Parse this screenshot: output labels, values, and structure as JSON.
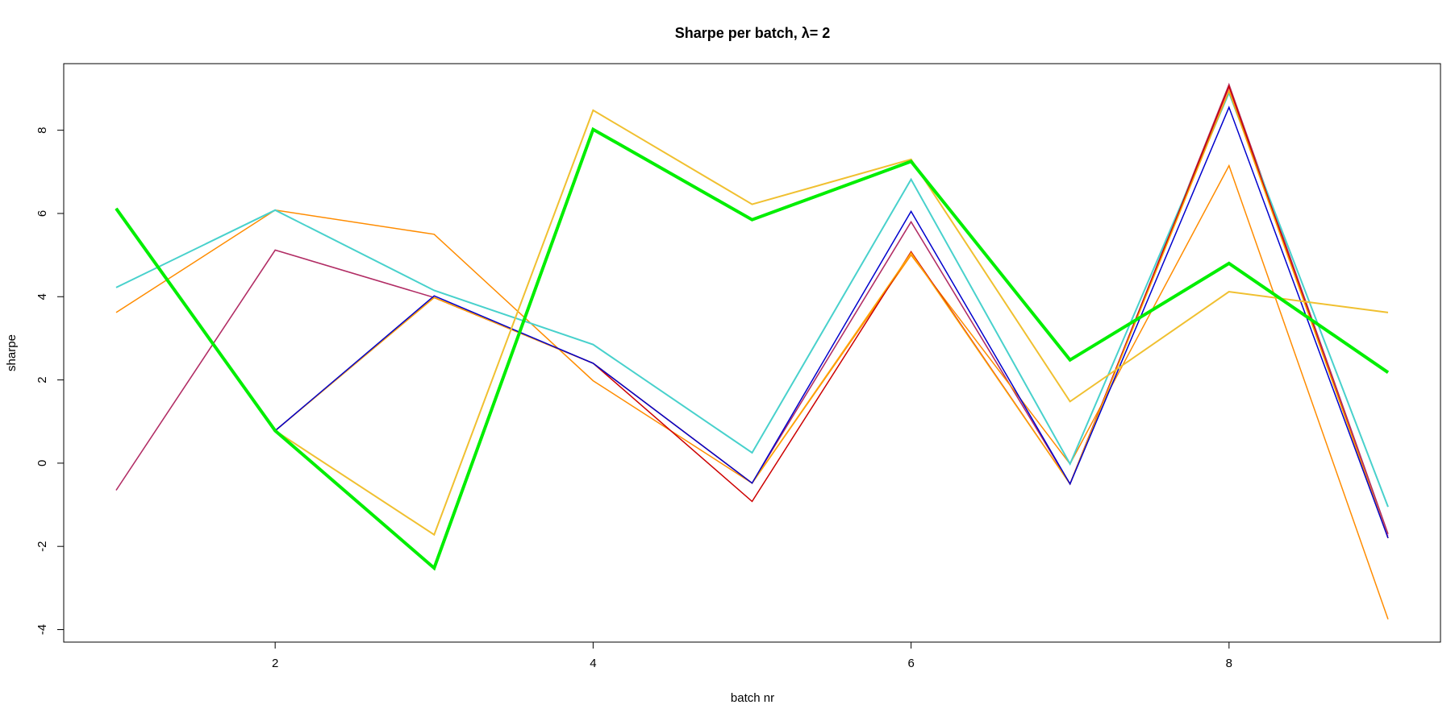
{
  "chart_data": {
    "type": "line",
    "title": "Sharpe per batch, λ= 2",
    "xlabel": "batch nr",
    "ylabel": "sharpe",
    "xlim": [
      0.67,
      9.33
    ],
    "ylim": [
      -4.3,
      9.6
    ],
    "x": [
      1,
      2,
      3,
      4,
      5,
      6,
      7,
      8,
      9
    ],
    "xticks": [
      2,
      4,
      6,
      8
    ],
    "yticks": [
      -4,
      -2,
      0,
      2,
      4,
      6,
      8
    ],
    "grid": false,
    "legend": "none",
    "series": [
      {
        "color": "#ee82ee",
        "width": 1.5,
        "values": [
          -0.65,
          5.12,
          3.98,
          2.4,
          -0.48,
          5.8,
          -0.5,
          9.0,
          -1.75
        ]
      },
      {
        "color": "#b03060",
        "width": 1.5,
        "values": [
          -0.65,
          5.12,
          3.98,
          2.4,
          -0.48,
          5.8,
          -0.5,
          9.1,
          -1.7
        ]
      },
      {
        "color": "#ff8c00",
        "width": 1.5,
        "values": [
          3.62,
          6.08,
          5.5,
          1.98,
          -0.48,
          5.0,
          -0.02,
          7.15,
          -3.75
        ]
      },
      {
        "color": "#48d1cc",
        "width": 2,
        "values": [
          4.22,
          6.08,
          4.15,
          2.85,
          0.25,
          6.82,
          -0.02,
          8.9,
          -1.05
        ]
      },
      {
        "color": "#9acd32",
        "width": 2,
        "values": [
          6.12,
          0.78,
          -2.52,
          8.02,
          5.85,
          7.25,
          2.48,
          4.8,
          2.18
        ]
      },
      {
        "color": "#cd0000",
        "width": 1.5,
        "values": [
          6.12,
          0.78,
          3.98,
          2.4,
          -0.92,
          5.08,
          -0.5,
          9.05,
          -1.8
        ]
      },
      {
        "color": "#ffa500",
        "width": 1.5,
        "values": [
          6.12,
          0.78,
          3.98,
          2.4,
          -0.48,
          5.05,
          -0.5,
          8.95,
          -1.8
        ]
      },
      {
        "color": "#0000cd",
        "width": 1.5,
        "values": [
          6.12,
          0.78,
          4.02,
          2.4,
          -0.48,
          6.05,
          -0.5,
          8.55,
          -1.8
        ]
      },
      {
        "color": "#f0c030",
        "width": 2,
        "values": [
          6.12,
          0.78,
          -1.72,
          8.48,
          6.22,
          7.3,
          1.48,
          4.12,
          3.62
        ]
      },
      {
        "color": "#00ee00",
        "width": 4,
        "values": [
          6.12,
          0.78,
          -2.52,
          8.02,
          5.85,
          7.25,
          2.48,
          4.8,
          2.18
        ]
      }
    ]
  }
}
